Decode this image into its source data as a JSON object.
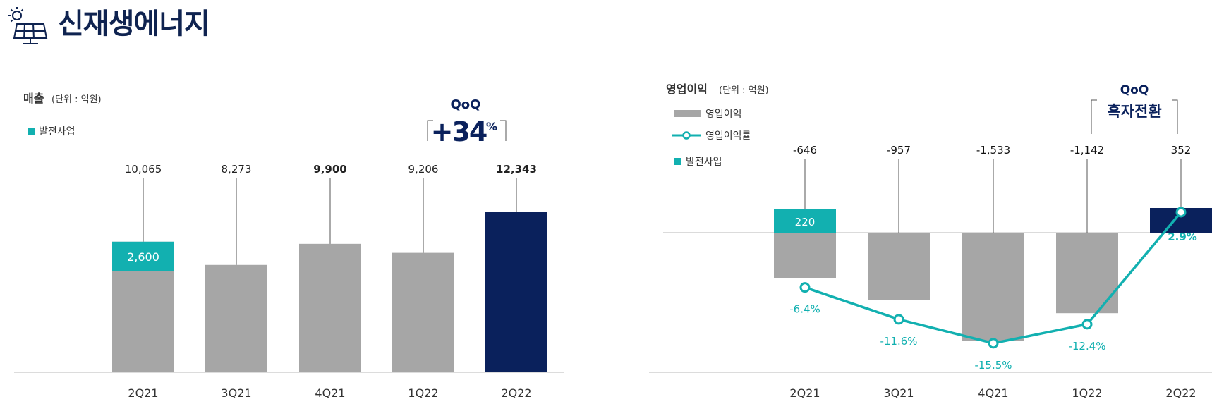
{
  "page": {
    "title": "신재생에너지",
    "icon": "solar-panel-icon"
  },
  "colors": {
    "gray_bar": "#a6a6a6",
    "teal": "#12b0b0",
    "navy": "#0a215c",
    "title_navy": "#0f2350"
  },
  "chart_data": [
    {
      "type": "bar",
      "title": "매출",
      "unit": "(단위 : 억원)",
      "legend": [
        "발전사업"
      ],
      "categories": [
        "2Q21",
        "3Q21",
        "4Q21",
        "1Q22",
        "2Q22"
      ],
      "series": [
        {
          "name": "발전사업",
          "values": [
            2600,
            null,
            null,
            null,
            null
          ]
        }
      ],
      "totals": [
        10065,
        8273,
        9900,
        9206,
        12343
      ],
      "total_labels": [
        "10,065",
        "8,273",
        "9,900",
        "9,206",
        "12,343"
      ],
      "segment_labels": [
        "2,600",
        "",
        "",
        "",
        ""
      ],
      "callout": {
        "line1": "QoQ",
        "line2": "+34",
        "suffix": "%"
      }
    },
    {
      "type": "bar",
      "title": "영업이익",
      "unit": "(단위 : 억원)",
      "legend": [
        "영업이익",
        "영업이익률",
        "발전사업"
      ],
      "categories": [
        "2Q21",
        "3Q21",
        "4Q21",
        "1Q22",
        "2Q22"
      ],
      "series": [
        {
          "name": "영업이익",
          "values": [
            -646,
            -957,
            -1533,
            -1142,
            352
          ]
        },
        {
          "name": "영업이익률",
          "values": [
            -6.4,
            -11.6,
            -15.5,
            -12.4,
            2.9
          ],
          "unit": "%"
        },
        {
          "name": "발전사업",
          "values": [
            220,
            null,
            null,
            null,
            null
          ]
        }
      ],
      "value_labels": [
        "-646",
        "-957",
        "-1,533",
        "-1,142",
        "352"
      ],
      "segment_labels": [
        "220",
        "",
        "",
        "",
        ""
      ],
      "margin_labels": [
        "-6.4%",
        "-11.6%",
        "-15.5%",
        "-12.4%",
        "2.9%"
      ],
      "callout": {
        "line1": "QoQ",
        "line2": "흑자전환"
      }
    }
  ]
}
